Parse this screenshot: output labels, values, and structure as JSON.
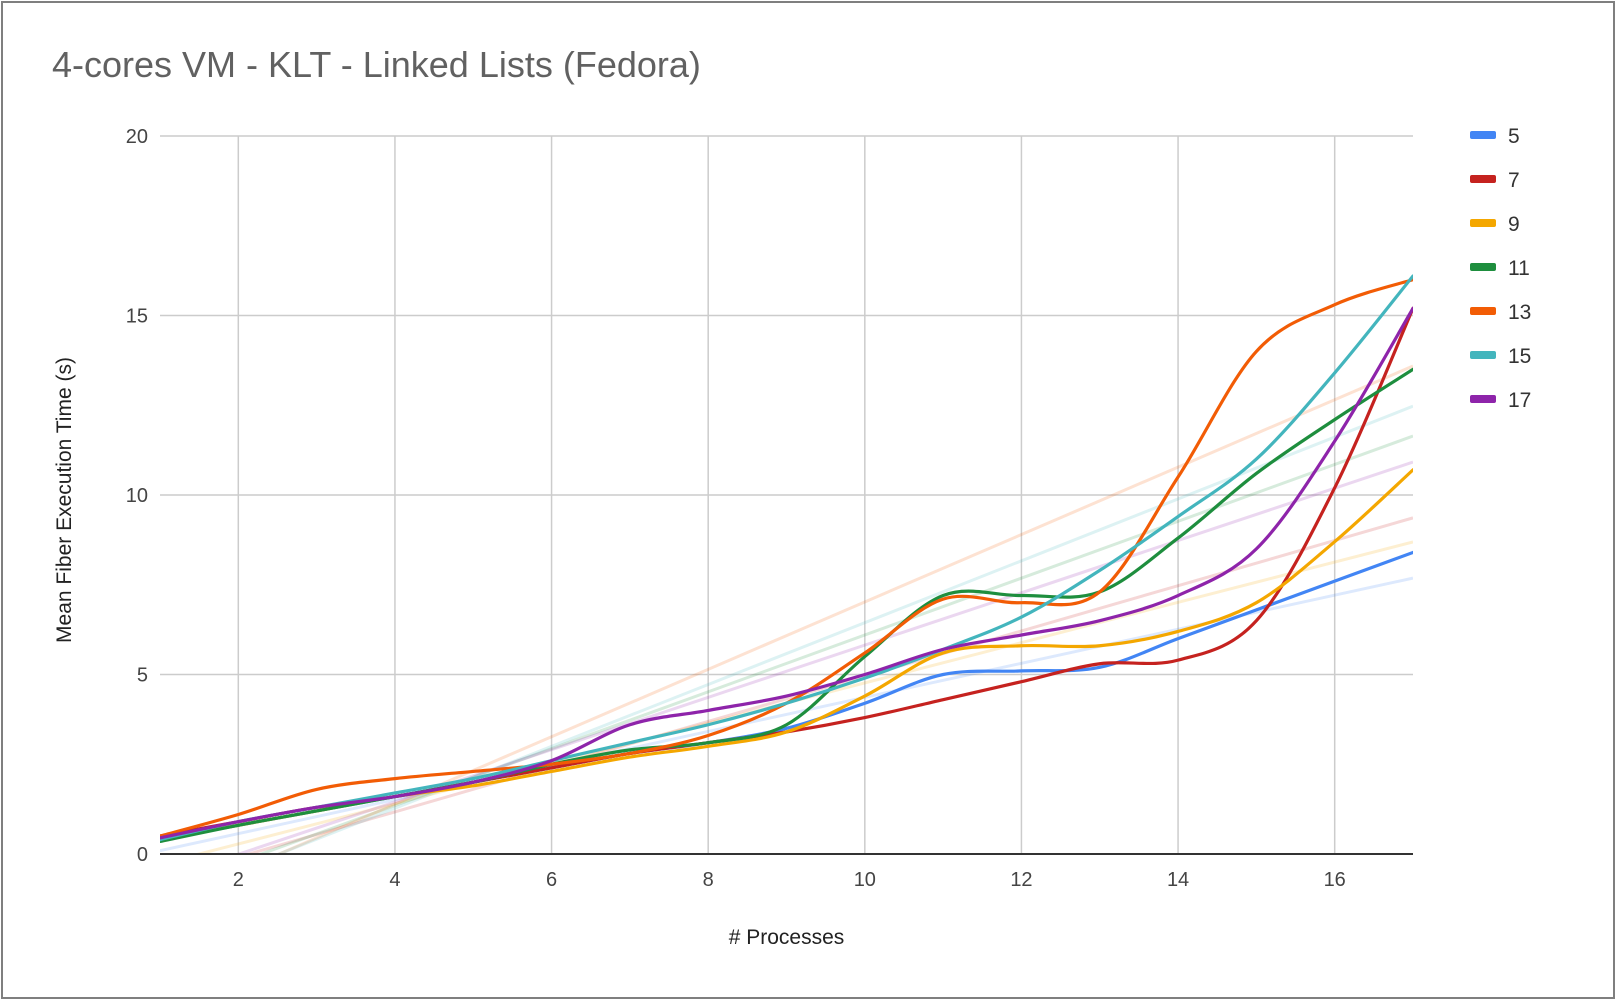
{
  "chart_data": {
    "type": "line",
    "title": "4-cores VM - KLT - Linked Lists (Fedora)",
    "xlabel": "# Processes",
    "ylabel": "Mean Fiber Execution Time (s)",
    "xlim": [
      1,
      17
    ],
    "ylim": [
      0,
      20
    ],
    "x_ticks": [
      2,
      4,
      6,
      8,
      10,
      12,
      14,
      16
    ],
    "y_ticks": [
      0,
      5,
      10,
      15,
      20
    ],
    "grid": true,
    "legend_position": "right",
    "trendlines": true,
    "x": [
      1,
      2,
      3,
      4,
      5,
      6,
      7,
      8,
      9,
      10,
      11,
      12,
      13,
      14,
      15,
      16,
      17
    ],
    "series": [
      {
        "name": "5",
        "color": "#4285f4",
        "values": [
          0.4,
          0.8,
          1.2,
          1.6,
          2.0,
          2.4,
          2.8,
          3.1,
          3.5,
          4.2,
          5.0,
          5.1,
          5.2,
          6.0,
          6.8,
          7.6,
          8.4
        ]
      },
      {
        "name": "7",
        "color": "#c5221f",
        "values": [
          0.5,
          0.9,
          1.3,
          1.6,
          2.0,
          2.4,
          2.8,
          3.1,
          3.4,
          3.8,
          4.3,
          4.8,
          5.3,
          5.4,
          6.5,
          10.2,
          15.2
        ]
      },
      {
        "name": "9",
        "color": "#f4a700",
        "values": [
          0.4,
          0.8,
          1.2,
          1.6,
          1.9,
          2.3,
          2.7,
          3.0,
          3.4,
          4.4,
          5.6,
          5.8,
          5.8,
          6.2,
          7.0,
          8.7,
          10.7
        ]
      },
      {
        "name": "11",
        "color": "#1e8e3e",
        "values": [
          0.35,
          0.8,
          1.2,
          1.6,
          2.0,
          2.5,
          2.9,
          3.1,
          3.6,
          5.5,
          7.2,
          7.2,
          7.3,
          8.8,
          10.6,
          12.1,
          13.5
        ]
      },
      {
        "name": "13",
        "color": "#f25c05",
        "values": [
          0.5,
          1.1,
          1.8,
          2.1,
          2.3,
          2.5,
          2.8,
          3.3,
          4.2,
          5.6,
          7.1,
          7.0,
          7.3,
          10.5,
          14.0,
          15.3,
          16.0
        ]
      },
      {
        "name": "15",
        "color": "#43b5bd",
        "values": [
          0.4,
          0.9,
          1.3,
          1.7,
          2.1,
          2.6,
          3.1,
          3.6,
          4.2,
          4.9,
          5.7,
          6.6,
          7.9,
          9.4,
          11.0,
          13.4,
          16.1
        ]
      },
      {
        "name": "17",
        "color": "#8e24aa",
        "values": [
          0.45,
          0.9,
          1.3,
          1.6,
          2.0,
          2.6,
          3.6,
          4.0,
          4.4,
          5.0,
          5.7,
          6.1,
          6.5,
          7.2,
          8.5,
          11.5,
          15.2
        ]
      }
    ]
  }
}
